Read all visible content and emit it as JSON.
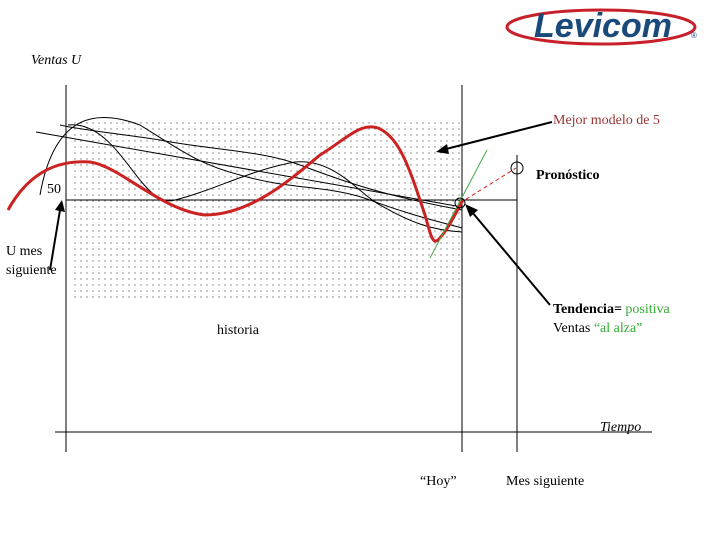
{
  "brand": {
    "logo_text": "Levicom",
    "logo_color": "#1a4a7a",
    "swoosh_color": "#c8202a"
  },
  "labels": {
    "y_axis": "Ventas U",
    "level_50": "50",
    "u_mes_line1": "U mes",
    "u_mes_line2": "siguiente",
    "mejor_modelo": "Mejor modelo de 5",
    "pronostico": "Pronóstico",
    "tendencia_prefix": "Tendencia=",
    "tendencia_value": "positiva",
    "ventas_prefix": "Ventas",
    "ventas_value": "“al alza”",
    "historia": "historia",
    "tiempo": "Tiempo",
    "hoy": "“Hoy”",
    "mes_siguiente": "Mes siguiente"
  },
  "colors": {
    "best_model": "#cc2222",
    "trend_line": "#44aa44",
    "forecast": "#cc2222",
    "mejor_modelo_text": "#993333",
    "positive_text": "#33aa33",
    "axis": "#000000",
    "models": "#000000",
    "history_dots": "#777777"
  }
}
